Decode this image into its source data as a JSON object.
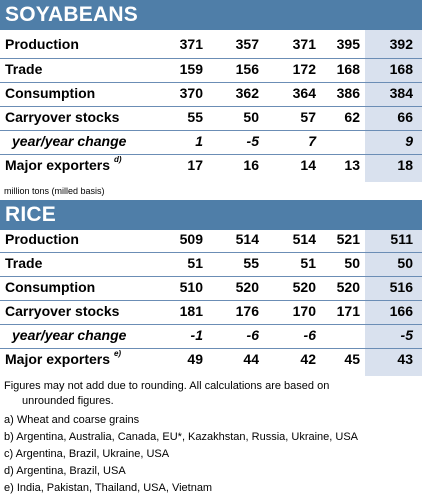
{
  "soy": {
    "title": "SOYABEANS",
    "rows": [
      {
        "label": "Production",
        "values": [
          "371",
          "357",
          "371",
          "395",
          "392"
        ]
      },
      {
        "label": "Trade",
        "values": [
          "159",
          "156",
          "172",
          "168",
          "168"
        ]
      },
      {
        "label": "Consumption",
        "values": [
          "370",
          "362",
          "364",
          "386",
          "384"
        ]
      },
      {
        "label": "Carryover stocks",
        "values": [
          "55",
          "50",
          "57",
          "62",
          "66"
        ]
      },
      {
        "label": "year/year change",
        "values": [
          "1",
          "-5",
          "7",
          "",
          "9"
        ]
      },
      {
        "label": "Major exporters",
        "sup": "d)",
        "values": [
          "17",
          "16",
          "14",
          "13",
          "18"
        ]
      }
    ]
  },
  "unit_note": "million tons (milled basis)",
  "rice": {
    "title": "RICE",
    "rows": [
      {
        "label": "Production",
        "values": [
          "509",
          "514",
          "514",
          "521",
          "511"
        ]
      },
      {
        "label": "Trade",
        "values": [
          "51",
          "55",
          "51",
          "50",
          "50"
        ]
      },
      {
        "label": "Consumption",
        "values": [
          "510",
          "520",
          "520",
          "520",
          "516"
        ]
      },
      {
        "label": "Carryover stocks",
        "values": [
          "181",
          "176",
          "170",
          "171",
          "166"
        ]
      },
      {
        "label": "year/year change",
        "values": [
          "-1",
          "-6",
          "-6",
          "",
          "-5"
        ]
      },
      {
        "label": "Major exporters",
        "sup": "e)",
        "values": [
          "49",
          "44",
          "42",
          "45",
          "43"
        ]
      }
    ]
  },
  "footnotes": {
    "line1": "Figures may not add due to rounding. All calculations are based on",
    "line2": "unrounded figures.",
    "a": "a) Wheat and coarse grains",
    "b": "b) Argentina, Australia, Canada, EU*, Kazakhstan, Russia, Ukraine, USA",
    "c": "c) Argentina, Brazil, Ukraine, USA",
    "d": "d) Argentina, Brazil, USA",
    "e": "e) India, Pakistan, Thailand, USA, Vietnam"
  }
}
